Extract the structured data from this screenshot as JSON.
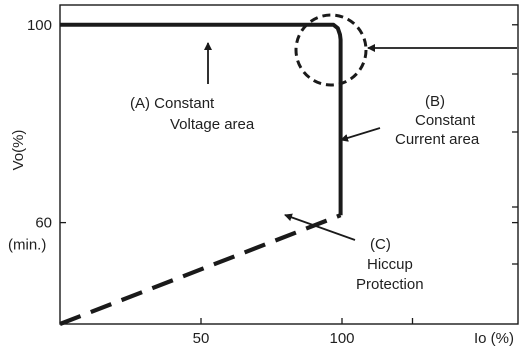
{
  "chart_data": {
    "type": "line",
    "xlabel": "Io (%)",
    "ylabel": "Vo(%)",
    "xlim": [
      0,
      125
    ],
    "ylim": [
      39.5,
      104
    ],
    "x_ticks": [
      {
        "value": 50,
        "label": "50"
      },
      {
        "value": 100,
        "label": "100"
      },
      {
        "value": 125,
        "label": "Io (%)"
      }
    ],
    "y_ticks": [
      {
        "value": 100,
        "label": "100"
      },
      {
        "value": 60,
        "label": "60",
        "sublabel": "(min.)"
      }
    ],
    "series": [
      {
        "style": "solid",
        "color": "#1a1a1a",
        "points": [
          [
            0,
            100
          ],
          [
            97,
            100
          ],
          [
            98.5,
            99.3
          ],
          [
            99.3,
            98
          ],
          [
            99.5,
            97
          ],
          [
            99.5,
            61.5
          ]
        ]
      },
      {
        "style": "dashed",
        "color": "#1a1a1a",
        "points": [
          [
            0,
            39.5
          ],
          [
            99.5,
            61.5
          ]
        ]
      }
    ],
    "annotations": [
      {
        "id": "a",
        "lines": [
          "(A)  Constant",
          "Voltage area"
        ]
      },
      {
        "id": "b",
        "lines": [
          "(B)",
          "Constant",
          "Current area"
        ]
      },
      {
        "id": "c",
        "lines": [
          "(C)",
          "Hiccup",
          "Protection"
        ]
      }
    ],
    "grid": false,
    "legend": "none"
  }
}
